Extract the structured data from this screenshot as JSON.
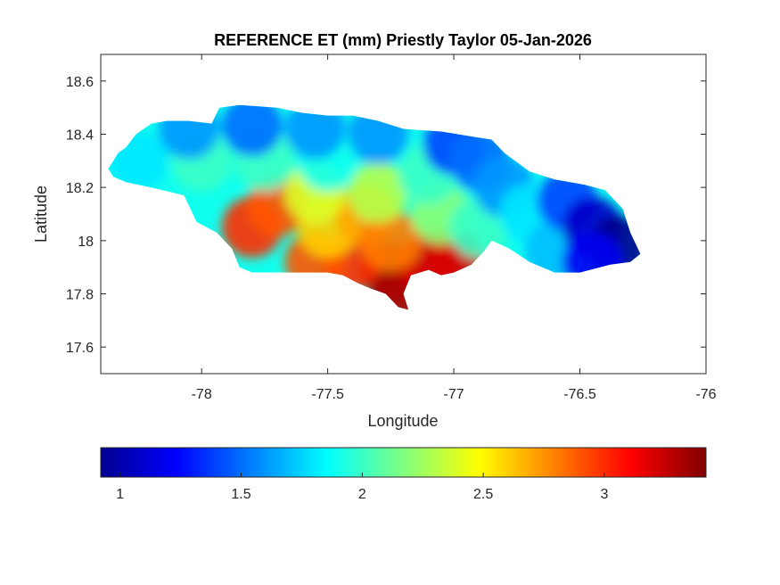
{
  "chart_data": {
    "type": "heatmap",
    "title": "REFERENCE ET (mm) Priestly Taylor 05-Jan-2026",
    "xlabel": "Longitude",
    "ylabel": "Latitude",
    "xlim": [
      -78.4,
      -76
    ],
    "ylim": [
      17.5,
      18.7
    ],
    "x_ticks": [
      -78,
      -77.5,
      -77,
      -76.5,
      -76
    ],
    "x_tick_labels": [
      "-78",
      "-77.5",
      "-77",
      "-76.5",
      "-76"
    ],
    "y_ticks": [
      17.6,
      17.8,
      18,
      18.2,
      18.4,
      18.6
    ],
    "y_tick_labels": [
      "17.6",
      "17.8",
      "18",
      "18.2",
      "18.4",
      "18.6"
    ],
    "colormap": "jet",
    "colorbar": {
      "orientation": "horizontal",
      "placement": "bottom",
      "range": [
        0.92,
        3.42
      ],
      "ticks": [
        1,
        1.5,
        2,
        2.5,
        3
      ],
      "tick_labels": [
        "1",
        "1.5",
        "2",
        "2.5",
        "3"
      ]
    },
    "region_outline": [
      [
        -78.37,
        18.27
      ],
      [
        -78.33,
        18.33
      ],
      [
        -78.3,
        18.35
      ],
      [
        -78.26,
        18.4
      ],
      [
        -78.2,
        18.44
      ],
      [
        -78.14,
        18.45
      ],
      [
        -78.05,
        18.45
      ],
      [
        -77.96,
        18.44
      ],
      [
        -77.93,
        18.5
      ],
      [
        -77.85,
        18.51
      ],
      [
        -77.7,
        18.5
      ],
      [
        -77.6,
        18.48
      ],
      [
        -77.5,
        18.47
      ],
      [
        -77.4,
        18.47
      ],
      [
        -77.3,
        18.45
      ],
      [
        -77.2,
        18.42
      ],
      [
        -77.05,
        18.41
      ],
      [
        -76.92,
        18.39
      ],
      [
        -76.85,
        18.38
      ],
      [
        -76.8,
        18.33
      ],
      [
        -76.7,
        18.26
      ],
      [
        -76.6,
        18.23
      ],
      [
        -76.48,
        18.21
      ],
      [
        -76.4,
        18.19
      ],
      [
        -76.33,
        18.12
      ],
      [
        -76.3,
        18.03
      ],
      [
        -76.26,
        17.95
      ],
      [
        -76.3,
        17.92
      ],
      [
        -76.38,
        17.91
      ],
      [
        -76.5,
        17.88
      ],
      [
        -76.6,
        17.88
      ],
      [
        -76.7,
        17.92
      ],
      [
        -76.78,
        17.97
      ],
      [
        -76.85,
        18.0
      ],
      [
        -76.88,
        17.96
      ],
      [
        -76.93,
        17.91
      ],
      [
        -77.0,
        17.88
      ],
      [
        -77.05,
        17.87
      ],
      [
        -77.1,
        17.89
      ],
      [
        -77.17,
        17.87
      ],
      [
        -77.2,
        17.8
      ],
      [
        -77.18,
        17.74
      ],
      [
        -77.22,
        17.75
      ],
      [
        -77.27,
        17.8
      ],
      [
        -77.33,
        17.82
      ],
      [
        -77.38,
        17.84
      ],
      [
        -77.44,
        17.87
      ],
      [
        -77.5,
        17.88
      ],
      [
        -77.6,
        17.88
      ],
      [
        -77.7,
        17.88
      ],
      [
        -77.8,
        17.88
      ],
      [
        -77.85,
        17.9
      ],
      [
        -77.88,
        17.97
      ],
      [
        -77.94,
        18.03
      ],
      [
        -78.02,
        18.07
      ],
      [
        -78.07,
        18.17
      ],
      [
        -78.2,
        18.2
      ],
      [
        -78.3,
        18.22
      ],
      [
        -78.35,
        18.24
      ]
    ],
    "value_field": [
      {
        "lon": -77.25,
        "lat": 17.88,
        "value": 3.4
      },
      {
        "lon": -77.2,
        "lat": 17.79,
        "value": 3.3
      },
      {
        "lon": -77.1,
        "lat": 17.92,
        "value": 3.2
      },
      {
        "lon": -77.0,
        "lat": 17.93,
        "value": 3.2
      },
      {
        "lon": -77.4,
        "lat": 17.93,
        "value": 3.0
      },
      {
        "lon": -77.55,
        "lat": 17.92,
        "value": 2.9
      },
      {
        "lon": -77.8,
        "lat": 18.05,
        "value": 3.0
      },
      {
        "lon": -77.7,
        "lat": 18.13,
        "value": 2.9
      },
      {
        "lon": -77.5,
        "lat": 18.05,
        "value": 2.6
      },
      {
        "lon": -77.35,
        "lat": 18.1,
        "value": 2.7
      },
      {
        "lon": -77.25,
        "lat": 18.0,
        "value": 2.8
      },
      {
        "lon": -77.55,
        "lat": 18.18,
        "value": 2.4
      },
      {
        "lon": -77.3,
        "lat": 18.18,
        "value": 2.3
      },
      {
        "lon": -77.05,
        "lat": 18.1,
        "value": 2.2
      },
      {
        "lon": -76.9,
        "lat": 18.05,
        "value": 2.0
      },
      {
        "lon": -77.1,
        "lat": 18.25,
        "value": 2.0
      },
      {
        "lon": -78.0,
        "lat": 18.3,
        "value": 2.0
      },
      {
        "lon": -77.75,
        "lat": 18.3,
        "value": 2.0
      },
      {
        "lon": -78.25,
        "lat": 18.3,
        "value": 1.8
      },
      {
        "lon": -77.5,
        "lat": 18.3,
        "value": 1.9
      },
      {
        "lon": -77.8,
        "lat": 18.43,
        "value": 1.5
      },
      {
        "lon": -77.55,
        "lat": 18.42,
        "value": 1.6
      },
      {
        "lon": -78.05,
        "lat": 18.42,
        "value": 1.6
      },
      {
        "lon": -77.3,
        "lat": 18.4,
        "value": 1.6
      },
      {
        "lon": -77.0,
        "lat": 18.36,
        "value": 1.4
      },
      {
        "lon": -76.9,
        "lat": 18.3,
        "value": 1.5
      },
      {
        "lon": -76.8,
        "lat": 18.2,
        "value": 1.6
      },
      {
        "lon": -76.7,
        "lat": 18.1,
        "value": 1.8
      },
      {
        "lon": -76.6,
        "lat": 17.96,
        "value": 1.7
      },
      {
        "lon": -76.55,
        "lat": 18.15,
        "value": 1.4
      },
      {
        "lon": -76.45,
        "lat": 18.05,
        "value": 1.1
      },
      {
        "lon": -76.35,
        "lat": 17.98,
        "value": 0.95
      },
      {
        "lon": -76.45,
        "lat": 17.92,
        "value": 1.2
      }
    ]
  }
}
